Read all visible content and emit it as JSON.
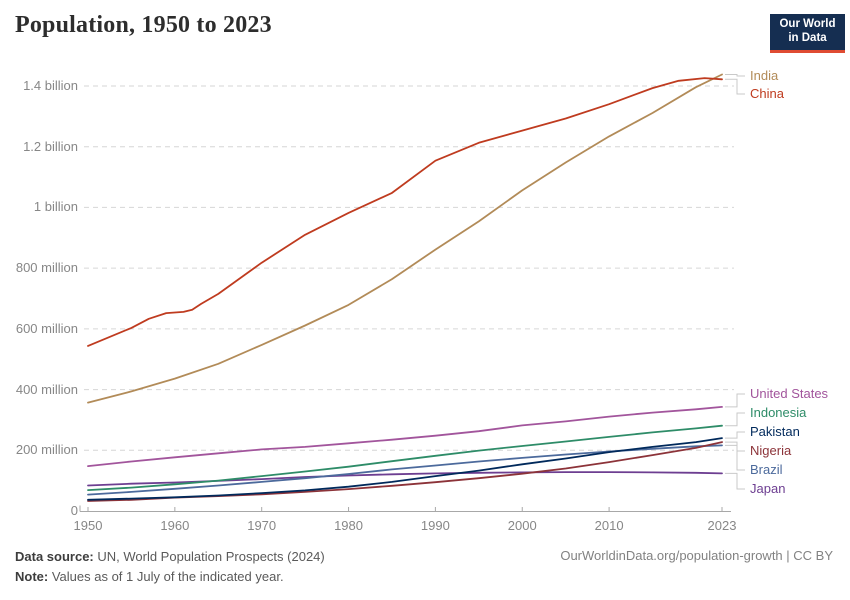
{
  "header": {
    "title": "Population, 1950 to 2023"
  },
  "logo": {
    "line1": "Our World",
    "line2": "in Data",
    "bg_color": "#152E51",
    "accent_color": "#DF4B32"
  },
  "footer": {
    "source_label": "Data source:",
    "source_text": " UN, World Population Prospects (2024)",
    "note_label": "Note:",
    "note_text": " Values as of 1 July of the indicated year.",
    "attribution": "OurWorldinData.org/population-growth | CC BY"
  },
  "chart_data": {
    "type": "line",
    "title": "Population, 1950 to 2023",
    "xlabel": "",
    "ylabel": "",
    "unit": "people (millions)",
    "x_range": [
      1950,
      2023
    ],
    "y_range_millions": [
      0,
      1400
    ],
    "grid": "horizontal-dashed",
    "legend_position": "right-end-labels",
    "x_ticks": [
      1950,
      1960,
      1970,
      1980,
      1990,
      2000,
      2010,
      2023
    ],
    "y_ticks": [
      {
        "value": 1400,
        "label": "1.4 billion"
      },
      {
        "value": 1200,
        "label": "1.2 billion"
      },
      {
        "value": 1000,
        "label": "1 billion"
      },
      {
        "value": 800,
        "label": "800 million"
      },
      {
        "value": 600,
        "label": "600 million"
      },
      {
        "value": 400,
        "label": "400 million"
      },
      {
        "value": 200,
        "label": "200 million"
      },
      {
        "value": 0,
        "label": "0"
      }
    ],
    "series": [
      {
        "name": "Japan",
        "color": "#6D3E91",
        "label_y": 489,
        "points": [
          [
            1950,
            84
          ],
          [
            1955,
            90
          ],
          [
            1960,
            94
          ],
          [
            1965,
            99
          ],
          [
            1970,
            105
          ],
          [
            1975,
            112
          ],
          [
            1980,
            117
          ],
          [
            1985,
            121
          ],
          [
            1990,
            124
          ],
          [
            1995,
            126
          ],
          [
            2000,
            127
          ],
          [
            2005,
            128
          ],
          [
            2010,
            128
          ],
          [
            2015,
            127
          ],
          [
            2020,
            126
          ],
          [
            2023,
            124
          ]
        ]
      },
      {
        "name": "Brazil",
        "color": "#4C6A9C",
        "label_y": 470,
        "points": [
          [
            1950,
            54
          ],
          [
            1955,
            63
          ],
          [
            1960,
            73
          ],
          [
            1965,
            84
          ],
          [
            1970,
            96
          ],
          [
            1975,
            108
          ],
          [
            1980,
            122
          ],
          [
            1985,
            137
          ],
          [
            1990,
            150
          ],
          [
            1995,
            163
          ],
          [
            2000,
            175
          ],
          [
            2005,
            186
          ],
          [
            2010,
            196
          ],
          [
            2015,
            205
          ],
          [
            2020,
            213
          ],
          [
            2023,
            216
          ]
        ]
      },
      {
        "name": "Nigeria",
        "color": "#8C3339",
        "label_y": 451,
        "points": [
          [
            1950,
            33
          ],
          [
            1955,
            37
          ],
          [
            1960,
            44
          ],
          [
            1965,
            49
          ],
          [
            1970,
            55
          ],
          [
            1975,
            63
          ],
          [
            1980,
            72
          ],
          [
            1985,
            83
          ],
          [
            1990,
            95
          ],
          [
            1995,
            108
          ],
          [
            2000,
            123
          ],
          [
            2005,
            140
          ],
          [
            2010,
            161
          ],
          [
            2015,
            184
          ],
          [
            2020,
            208
          ],
          [
            2023,
            227
          ]
        ]
      },
      {
        "name": "Pakistan",
        "color": "#00295B",
        "label_y": 432,
        "points": [
          [
            1950,
            37
          ],
          [
            1955,
            41
          ],
          [
            1960,
            45
          ],
          [
            1965,
            51
          ],
          [
            1970,
            59
          ],
          [
            1975,
            68
          ],
          [
            1980,
            80
          ],
          [
            1985,
            96
          ],
          [
            1990,
            115
          ],
          [
            1995,
            133
          ],
          [
            2000,
            154
          ],
          [
            2005,
            173
          ],
          [
            2010,
            194
          ],
          [
            2015,
            211
          ],
          [
            2020,
            227
          ],
          [
            2023,
            240
          ]
        ]
      },
      {
        "name": "Indonesia",
        "color": "#2E8C68",
        "label_y": 413,
        "points": [
          [
            1950,
            69
          ],
          [
            1955,
            77
          ],
          [
            1960,
            88
          ],
          [
            1965,
            100
          ],
          [
            1970,
            115
          ],
          [
            1975,
            130
          ],
          [
            1980,
            146
          ],
          [
            1985,
            164
          ],
          [
            1990,
            182
          ],
          [
            1995,
            199
          ],
          [
            2000,
            214
          ],
          [
            2005,
            229
          ],
          [
            2010,
            244
          ],
          [
            2015,
            259
          ],
          [
            2020,
            272
          ],
          [
            2023,
            281
          ]
        ]
      },
      {
        "name": "United States",
        "color": "#A2559C",
        "label_y": 394,
        "points": [
          [
            1950,
            148
          ],
          [
            1955,
            163
          ],
          [
            1960,
            177
          ],
          [
            1965,
            190
          ],
          [
            1970,
            203
          ],
          [
            1975,
            211
          ],
          [
            1980,
            223
          ],
          [
            1985,
            235
          ],
          [
            1990,
            248
          ],
          [
            1995,
            263
          ],
          [
            2000,
            282
          ],
          [
            2005,
            295
          ],
          [
            2010,
            311
          ],
          [
            2015,
            324
          ],
          [
            2020,
            335
          ],
          [
            2023,
            343
          ]
        ]
      },
      {
        "name": "India",
        "color": "#B28B58",
        "label_y": 76,
        "points": [
          [
            1950,
            357
          ],
          [
            1955,
            394
          ],
          [
            1960,
            436
          ],
          [
            1965,
            485
          ],
          [
            1970,
            547
          ],
          [
            1975,
            611
          ],
          [
            1980,
            679
          ],
          [
            1985,
            764
          ],
          [
            1990,
            861
          ],
          [
            1995,
            954
          ],
          [
            2000,
            1056
          ],
          [
            2005,
            1148
          ],
          [
            2010,
            1234
          ],
          [
            2015,
            1311
          ],
          [
            2020,
            1396
          ],
          [
            2023,
            1438
          ]
        ]
      },
      {
        "name": "China",
        "color": "#BF3B1F",
        "label_y": 94,
        "points": [
          [
            1950,
            544
          ],
          [
            1955,
            603
          ],
          [
            1957,
            633
          ],
          [
            1959,
            652
          ],
          [
            1961,
            656
          ],
          [
            1962,
            663
          ],
          [
            1963,
            682
          ],
          [
            1965,
            715
          ],
          [
            1970,
            818
          ],
          [
            1975,
            910
          ],
          [
            1980,
            982
          ],
          [
            1985,
            1048
          ],
          [
            1990,
            1154
          ],
          [
            1995,
            1213
          ],
          [
            2000,
            1253
          ],
          [
            2005,
            1293
          ],
          [
            2010,
            1340
          ],
          [
            2015,
            1393
          ],
          [
            2018,
            1417
          ],
          [
            2021,
            1426
          ],
          [
            2023,
            1422
          ]
        ]
      }
    ],
    "style": {
      "gridline_color": "#d6d6d6",
      "axis_color": "#a8a8a8",
      "connector_color": "#c9c9c9",
      "line_width": 1.8
    }
  }
}
